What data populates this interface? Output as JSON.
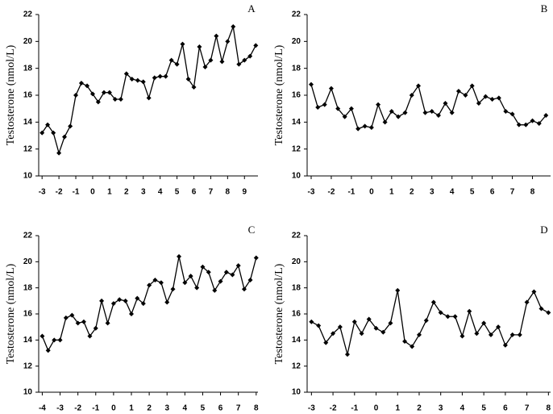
{
  "chart_data": [
    {
      "type": "line",
      "annotation": "A",
      "ylabel": "Testosterone (nmol/L)",
      "color": "#000000",
      "x": [
        -3,
        -2.67,
        -2.33,
        -2,
        -1.67,
        -1.33,
        -1,
        -0.67,
        -0.33,
        0,
        0.33,
        0.67,
        1,
        1.33,
        1.67,
        2,
        2.33,
        2.67,
        3,
        3.33,
        3.67,
        4,
        4.33,
        4.67,
        5,
        5.33,
        5.67,
        6,
        6.33,
        6.67,
        7,
        7.33,
        7.67,
        8,
        8.33,
        8.67,
        9,
        9.33,
        9.67
      ],
      "values": [
        13.2,
        13.8,
        13.2,
        11.7,
        12.9,
        13.7,
        16.0,
        16.9,
        16.7,
        16.1,
        15.5,
        16.2,
        16.2,
        15.7,
        15.7,
        17.6,
        17.2,
        17.1,
        17.0,
        15.8,
        17.3,
        17.4,
        17.4,
        18.6,
        18.3,
        19.8,
        17.2,
        16.6,
        19.6,
        18.1,
        18.6,
        20.4,
        18.5,
        20.0,
        21.1,
        18.3,
        18.6,
        18.9,
        19.7
      ],
      "xlim": [
        -3.2,
        9.8
      ],
      "xticks": [
        -3,
        -2,
        -1,
        0,
        1,
        2,
        3,
        4,
        5,
        6,
        7,
        8,
        9
      ],
      "ylim": [
        10,
        22
      ],
      "yticks": [
        10,
        12,
        14,
        16,
        18,
        20,
        22
      ]
    },
    {
      "type": "line",
      "annotation": "B",
      "ylabel": "Testosterone (nmol/L)",
      "color": "#000000",
      "x": [
        -3,
        -2.67,
        -2.33,
        -2,
        -1.67,
        -1.33,
        -1,
        -0.67,
        -0.33,
        0,
        0.33,
        0.67,
        1,
        1.33,
        1.67,
        2,
        2.33,
        2.67,
        3,
        3.33,
        3.67,
        4,
        4.33,
        4.67,
        5,
        5.33,
        5.67,
        6,
        6.33,
        6.67,
        7,
        7.33,
        7.67,
        8,
        8.33,
        8.67
      ],
      "values": [
        16.8,
        15.1,
        15.3,
        16.5,
        15.0,
        14.4,
        15.0,
        13.5,
        13.7,
        13.6,
        15.3,
        14.0,
        14.8,
        14.4,
        14.7,
        16.0,
        16.7,
        14.7,
        14.8,
        14.5,
        15.4,
        14.7,
        16.3,
        16.0,
        16.7,
        15.4,
        15.9,
        15.7,
        15.8,
        14.8,
        14.6,
        13.8,
        13.8,
        14.1,
        13.9,
        14.5
      ],
      "xlim": [
        -3.2,
        8.9
      ],
      "xticks": [
        -3,
        -2,
        -1,
        0,
        1,
        2,
        3,
        4,
        5,
        6,
        7,
        8
      ],
      "ylim": [
        10,
        22
      ],
      "yticks": [
        10,
        12,
        14,
        16,
        18,
        20,
        22
      ]
    },
    {
      "type": "line",
      "annotation": "C",
      "ylabel": "Testosterone (nmol/L)",
      "color": "#000000",
      "x": [
        -4,
        -3.67,
        -3.33,
        -3,
        -2.67,
        -2.33,
        -2,
        -1.67,
        -1.33,
        -1,
        -0.67,
        -0.33,
        0,
        0.33,
        0.67,
        1,
        1.33,
        1.67,
        2,
        2.33,
        2.67,
        3,
        3.33,
        3.67,
        4,
        4.33,
        4.67,
        5,
        5.33,
        5.67,
        6,
        6.33,
        6.67,
        7,
        7.33,
        7.67,
        8
      ],
      "values": [
        14.3,
        13.2,
        14.0,
        14.0,
        15.7,
        15.9,
        15.3,
        15.4,
        14.3,
        14.9,
        17.0,
        15.3,
        16.8,
        17.1,
        17.0,
        16.0,
        17.2,
        16.8,
        18.2,
        18.6,
        18.4,
        16.9,
        17.9,
        20.4,
        18.4,
        18.9,
        18.0,
        19.6,
        19.2,
        17.8,
        18.5,
        19.2,
        19.0,
        19.7,
        17.9,
        18.6,
        20.3
      ],
      "xlim": [
        -4.2,
        8.1
      ],
      "xticks": [
        -4,
        -3,
        -2,
        -1,
        0,
        1,
        2,
        3,
        4,
        5,
        6,
        7,
        8
      ],
      "ylim": [
        10,
        22
      ],
      "yticks": [
        10,
        12,
        14,
        16,
        18,
        20,
        22
      ]
    },
    {
      "type": "line",
      "annotation": "D",
      "ylabel": "Testosterone (nmol/L)",
      "color": "#000000",
      "x": [
        -3,
        -2.67,
        -2.33,
        -2,
        -1.67,
        -1.33,
        -1,
        -0.67,
        -0.33,
        0,
        0.33,
        0.67,
        1,
        1.33,
        1.67,
        2,
        2.33,
        2.67,
        3,
        3.33,
        3.67,
        4,
        4.33,
        4.67,
        5,
        5.33,
        5.67,
        6,
        6.33,
        6.67,
        7,
        7.33,
        7.67,
        8
      ],
      "values": [
        15.4,
        15.1,
        13.8,
        14.5,
        15.0,
        12.9,
        15.4,
        14.5,
        15.6,
        14.9,
        14.6,
        15.3,
        17.8,
        13.9,
        13.5,
        14.4,
        15.5,
        16.9,
        16.1,
        15.8,
        15.8,
        14.3,
        16.2,
        14.5,
        15.3,
        14.4,
        15.0,
        13.6,
        14.4,
        14.4,
        16.9,
        17.7,
        16.4,
        16.1
      ],
      "xlim": [
        -3.2,
        8.1
      ],
      "xticks": [
        -3,
        -2,
        -1,
        0,
        1,
        2,
        3,
        4,
        5,
        6,
        7,
        8
      ],
      "ylim": [
        10,
        22
      ],
      "yticks": [
        10,
        12,
        14,
        16,
        18,
        20,
        22
      ]
    }
  ]
}
